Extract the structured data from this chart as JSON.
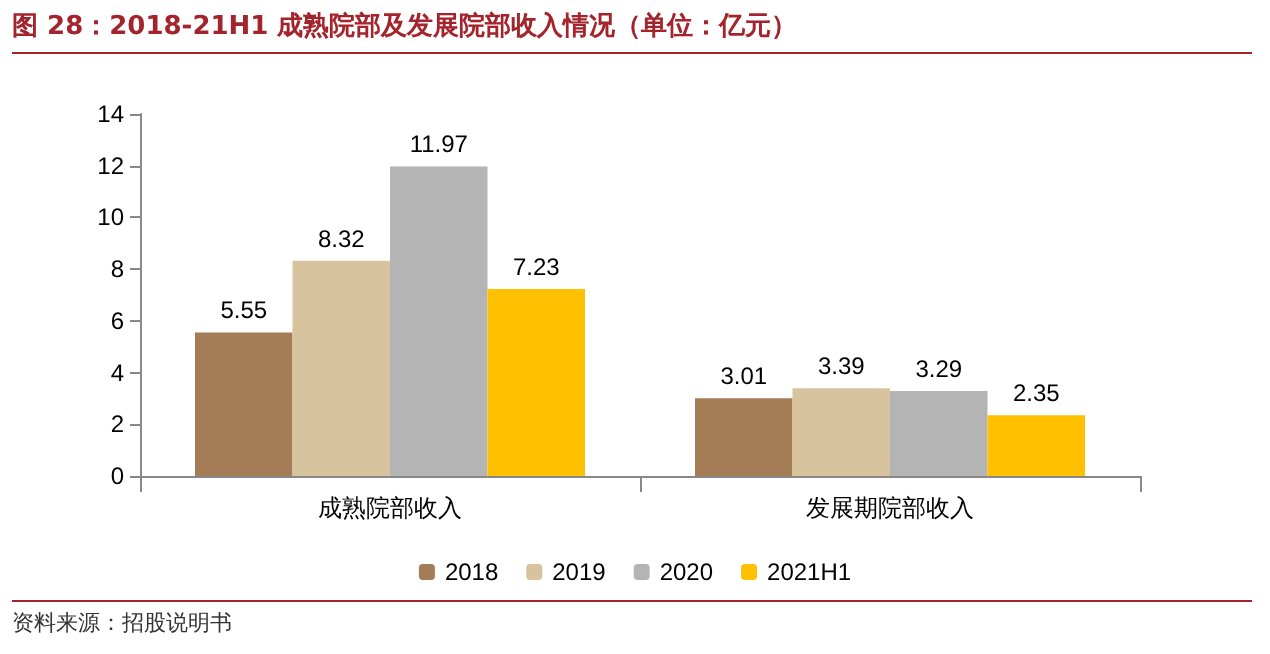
{
  "chart_data": {
    "type": "bar",
    "title": "图 28：2018-21H1 成熟院部及发展院部收入情况（单位：亿元）",
    "categories": [
      "成熟院部收入",
      "发展期院部收入"
    ],
    "series": [
      {
        "name": "2018",
        "color": "#a47c55",
        "values": [
          5.55,
          3.01
        ]
      },
      {
        "name": "2019",
        "color": "#d7c39e",
        "values": [
          8.32,
          3.39
        ]
      },
      {
        "name": "2020",
        "color": "#b4b4b4",
        "values": [
          11.97,
          3.29
        ]
      },
      {
        "name": "2021H1",
        "color": "#ffc000",
        "values": [
          7.23,
          2.35
        ]
      }
    ],
    "ylim": [
      0,
      14
    ],
    "yticks": [
      0,
      2,
      4,
      6,
      8,
      10,
      12,
      14
    ],
    "grid": false,
    "legend": "bottom",
    "data_labels": true,
    "annotations": [
      "资料来源：招股说明书"
    ]
  }
}
